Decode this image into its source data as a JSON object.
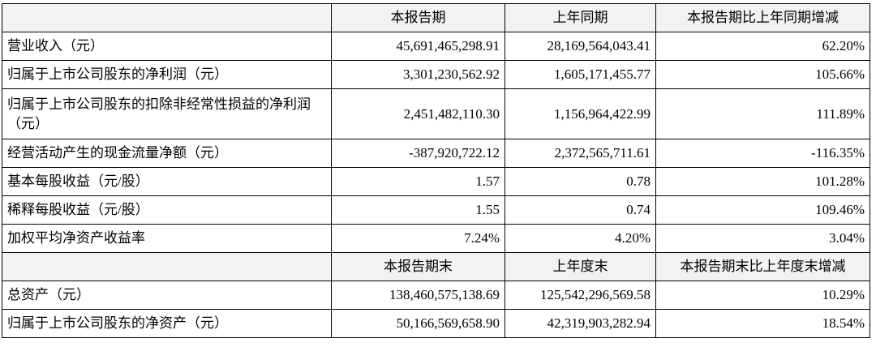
{
  "table": {
    "header": [
      "本报告期",
      "上年同期",
      "本报告期比上年同期增减"
    ],
    "rows": [
      [
        "营业收入（元）",
        "45,691,465,298.91",
        "28,169,564,043.41",
        "62.20%"
      ],
      [
        "归属于上市公司股东的净利润（元）",
        "3,301,230,562.92",
        "1,605,171,455.77",
        "105.66%"
      ],
      [
        "归属于上市公司股东的扣除非经常性损益的净利润（元）",
        "2,451,482,110.30",
        "1,156,964,422.99",
        "111.89%"
      ],
      [
        "经营活动产生的现金流量净额（元）",
        "-387,920,722.12",
        "2,372,565,711.61",
        "-116.35%"
      ],
      [
        "基本每股收益（元/股）",
        "1.57",
        "0.78",
        "101.28%"
      ],
      [
        "稀释每股收益（元/股）",
        "1.55",
        "0.74",
        "109.46%"
      ],
      [
        "加权平均净资产收益率",
        "7.24%",
        "4.20%",
        "3.04%"
      ]
    ],
    "header2": [
      "本报告期末",
      "上年度末",
      "本报告期末比上年度末增减"
    ],
    "rows2": [
      [
        "总资产（元）",
        "138,460,575,138.69",
        "125,542,296,569.58",
        "10.29%"
      ],
      [
        "归属于上市公司股东的净资产（元）",
        "50,166,569,658.90",
        "42,319,903,282.94",
        "18.54%"
      ]
    ]
  }
}
